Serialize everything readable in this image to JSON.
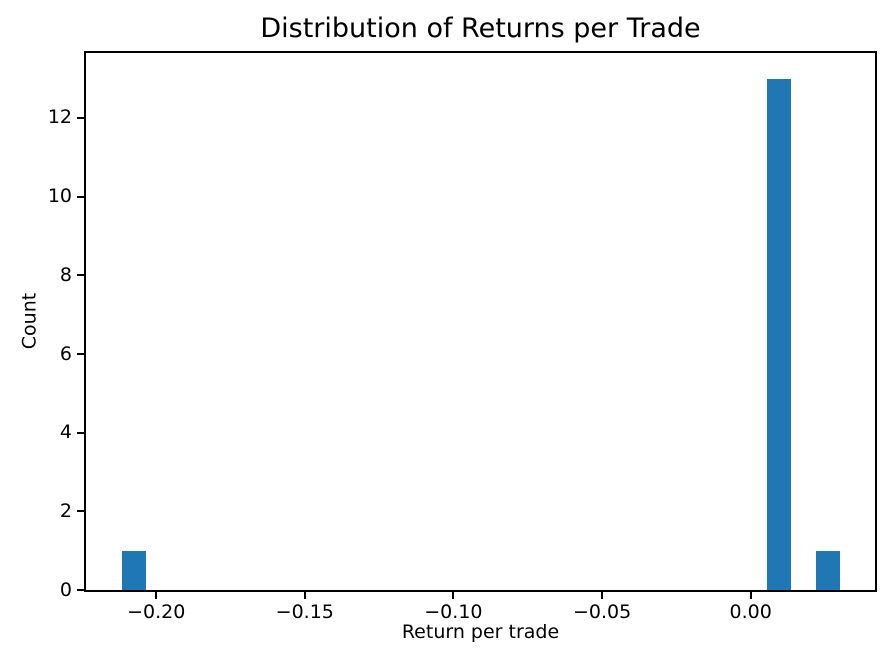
{
  "figure": {
    "background": "#ffffff",
    "text_color": "#000000"
  },
  "chart_data": {
    "type": "bar",
    "subtype": "histogram",
    "title": "Distribution of Returns per Trade",
    "xlabel": "Return per trade",
    "ylabel": "Count",
    "xlim": [
      -0.2236,
      0.0418
    ],
    "ylim": [
      0,
      13.65
    ],
    "grid": false,
    "legend": "none",
    "bar_color": "#1f77b4",
    "axis_color": "#000000",
    "x_ticks": [
      {
        "v": -0.2,
        "label": "−0.20"
      },
      {
        "v": -0.15,
        "label": "−0.15"
      },
      {
        "v": -0.1,
        "label": "−0.10"
      },
      {
        "v": -0.05,
        "label": "−0.05"
      },
      {
        "v": 0.0,
        "label": "0.00"
      }
    ],
    "y_ticks": [
      {
        "v": 0,
        "label": "0"
      },
      {
        "v": 2,
        "label": "2"
      },
      {
        "v": 4,
        "label": "4"
      },
      {
        "v": 6,
        "label": "6"
      },
      {
        "v": 8,
        "label": "8"
      },
      {
        "v": 10,
        "label": "10"
      },
      {
        "v": 12,
        "label": "12"
      }
    ],
    "bars": [
      {
        "x0": -0.2115,
        "x1": -0.2034,
        "count": 1
      },
      {
        "x0": 0.0056,
        "x1": 0.0137,
        "count": 13
      },
      {
        "x0": 0.0218,
        "x1": 0.0299,
        "count": 1
      }
    ]
  }
}
